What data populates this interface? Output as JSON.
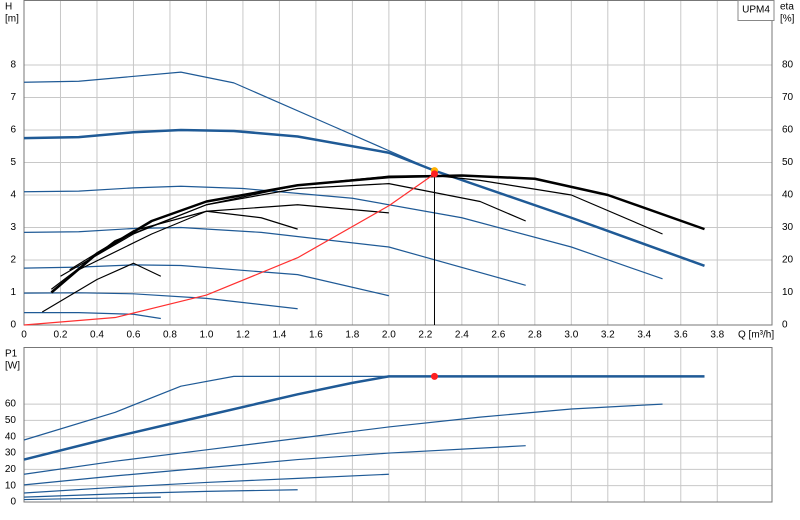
{
  "chart_data": [
    {
      "type": "line",
      "label": "UPM4",
      "ylabel": "H",
      "ylabel_unit": "[m]",
      "y2label": "eta",
      "y2label_unit": "[%]",
      "xlabel": "Q [m³/h]",
      "xlim": [
        0,
        4.1
      ],
      "ylim": [
        0,
        10
      ],
      "y2lim": [
        0,
        100
      ],
      "grid": true,
      "xticks": [
        0,
        0.2,
        0.4,
        0.6,
        0.8,
        {
          "value": 1,
          "label": "1.0"
        },
        1.2,
        1.4,
        1.6,
        1.8,
        {
          "value": 2,
          "label": "2.0"
        },
        2.2,
        2.4,
        2.6,
        2.8,
        {
          "value": 3,
          "label": "3.0"
        },
        3.2,
        3.4,
        3.6,
        3.8
      ],
      "yticks": [
        0,
        1,
        2,
        3,
        4,
        5,
        6,
        7,
        8
      ],
      "y2ticks": [
        0,
        10,
        20,
        30,
        40,
        50,
        60,
        70,
        80
      ],
      "series": [
        {
          "color": "#1f5a96",
          "x": [
            0,
            0.3,
            0.86,
            1.15,
            1.7,
            2.25
          ],
          "values": [
            7.47,
            7.5,
            7.78,
            7.45,
            6.1,
            4.75
          ]
        },
        {
          "color": "#1f5a96",
          "thick": true,
          "x": [
            0,
            0.3,
            0.6,
            0.86,
            1.15,
            1.5,
            2.0,
            2.25,
            3.0,
            3.73
          ],
          "values": [
            5.75,
            5.78,
            5.93,
            6.0,
            5.97,
            5.8,
            5.3,
            4.75,
            3.3,
            1.82
          ]
        },
        {
          "color": "#1f5a96",
          "x": [
            0,
            0.3,
            0.6,
            0.86,
            1.2,
            1.8,
            2.4,
            3.0,
            3.5
          ],
          "values": [
            4.1,
            4.12,
            4.22,
            4.27,
            4.2,
            3.9,
            3.3,
            2.4,
            1.42
          ]
        },
        {
          "color": "#1f5a96",
          "x": [
            0,
            0.3,
            0.6,
            0.86,
            1.3,
            2.0,
            2.75
          ],
          "values": [
            2.85,
            2.87,
            2.97,
            3.0,
            2.85,
            2.4,
            1.22
          ]
        },
        {
          "color": "#1f5a96",
          "x": [
            0,
            0.3,
            0.6,
            0.86,
            1.5,
            2.0
          ],
          "values": [
            1.75,
            1.78,
            1.85,
            1.83,
            1.55,
            0.9
          ]
        },
        {
          "color": "#1f5a96",
          "x": [
            0,
            0.3,
            0.6,
            1.0,
            1.5
          ],
          "values": [
            0.98,
            0.99,
            0.96,
            0.82,
            0.5
          ]
        },
        {
          "color": "#1f5a96",
          "x": [
            0,
            0.3,
            0.6,
            0.75
          ],
          "values": [
            0.38,
            0.38,
            0.33,
            0.2
          ]
        },
        {
          "color": "#000000",
          "thick": true,
          "axis": "y2",
          "x": [
            0.15,
            0.4,
            0.7,
            1.0,
            1.5,
            2.0,
            2.4,
            2.8,
            3.2,
            3.73
          ],
          "values": [
            10,
            22,
            32,
            38,
            43,
            45.5,
            46,
            45,
            40,
            29.5
          ]
        },
        {
          "color": "#000000",
          "axis": "y2",
          "x": [
            0.15,
            0.5,
            1.0,
            1.5,
            2.0,
            2.25,
            2.5,
            3.0,
            3.5
          ],
          "values": [
            11,
            26,
            37,
            43,
            45.8,
            46,
            44.5,
            40,
            28
          ]
        },
        {
          "color": "#000000",
          "axis": "y2",
          "x": [
            0.2,
            0.6,
            1.0,
            1.5,
            2.0,
            2.5,
            2.75
          ],
          "values": [
            15,
            28,
            37,
            42,
            43.5,
            38,
            32
          ]
        },
        {
          "color": "#000000",
          "axis": "y2",
          "x": [
            0.25,
            0.6,
            1.0,
            1.5,
            2.0
          ],
          "values": [
            17,
            29,
            35,
            37,
            34.5
          ]
        },
        {
          "color": "#000000",
          "axis": "y2",
          "x": [
            0.3,
            0.7,
            1.0,
            1.3,
            1.5
          ],
          "values": [
            17,
            28,
            35,
            33,
            29.5
          ]
        },
        {
          "color": "#000000",
          "axis": "y2",
          "x": [
            0.1,
            0.4,
            0.6,
            0.75
          ],
          "values": [
            4,
            14,
            19,
            15
          ]
        },
        {
          "color": "#ff3030",
          "x": [
            0,
            0.5,
            1.0,
            1.5,
            2.0,
            2.25
          ],
          "values": [
            0,
            0.23,
            0.92,
            2.07,
            3.67,
            4.65
          ]
        }
      ],
      "markers": [
        {
          "x": 2.25,
          "y": 4.75,
          "color": "#ffb000"
        },
        {
          "x": 2.25,
          "y": 4.65,
          "color": "#ff2020",
          "drop_line": true
        }
      ]
    },
    {
      "type": "line",
      "ylabel": "P1",
      "ylabel_unit": "[W]",
      "xlim": [
        0,
        4.1
      ],
      "ylim": [
        0,
        95
      ],
      "grid": true,
      "yticks": [
        0,
        10,
        20,
        30,
        40,
        50,
        60
      ],
      "series": [
        {
          "color": "#1f5a96",
          "thick": true,
          "x": [
            0,
            0.5,
            1.0,
            1.5,
            1.8,
            2.0,
            2.25,
            3.73
          ],
          "values": [
            26,
            40,
            53,
            66,
            73,
            77,
            77,
            77
          ]
        },
        {
          "color": "#1f5a96",
          "x": [
            0,
            0.5,
            0.86,
            1.15,
            2.25
          ],
          "values": [
            38,
            55,
            71,
            77,
            77
          ]
        },
        {
          "color": "#1f5a96",
          "x": [
            0,
            0.5,
            1.0,
            1.5,
            2.0,
            2.5,
            3.0,
            3.5
          ],
          "values": [
            17,
            25,
            32,
            39,
            46,
            52,
            57,
            60
          ]
        },
        {
          "color": "#1f5a96",
          "x": [
            0,
            0.5,
            1.0,
            1.5,
            2.0,
            2.75
          ],
          "values": [
            10.5,
            16,
            21,
            26,
            30,
            34.5
          ]
        },
        {
          "color": "#1f5a96",
          "x": [
            0,
            0.5,
            1.0,
            1.5,
            2.0
          ],
          "values": [
            5.5,
            9,
            12,
            14.5,
            17
          ]
        },
        {
          "color": "#1f5a96",
          "x": [
            0,
            0.5,
            1.0,
            1.5
          ],
          "values": [
            3,
            5,
            6.5,
            7.5
          ]
        },
        {
          "color": "#1f5a96",
          "x": [
            0,
            0.5,
            0.75
          ],
          "values": [
            1.5,
            2.5,
            3
          ]
        }
      ],
      "markers": [
        {
          "x": 2.25,
          "y": 77,
          "color": "#ff2020"
        }
      ]
    }
  ]
}
